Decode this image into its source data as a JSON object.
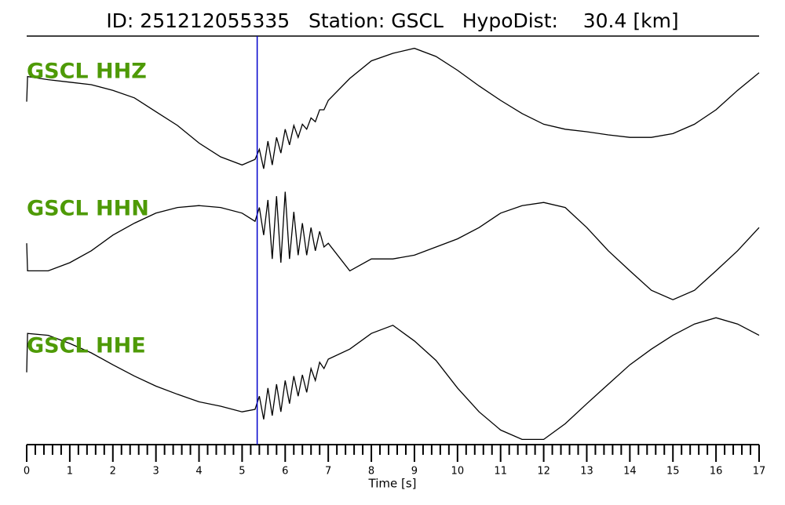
{
  "chart_data": {
    "type": "line",
    "title": "ID: 251212055335   Station: GSCL   HypoDist:    30.4 [km]",
    "xlabel": "Time [s]",
    "xlim": [
      0,
      17
    ],
    "ylim": [
      -1,
      1
    ],
    "xticks": [
      0,
      1,
      2,
      3,
      4,
      5,
      6,
      7,
      8,
      9,
      10,
      11,
      12,
      13,
      14,
      15,
      16,
      17
    ],
    "xminorticks": [
      0.2,
      0.4,
      0.6,
      0.8,
      1.2,
      1.4,
      1.6,
      1.8,
      2.2,
      2.4,
      2.6,
      2.8,
      3.2,
      3.4,
      3.6,
      3.8,
      4.2,
      4.4,
      4.6,
      4.8,
      5.2,
      5.4,
      5.6,
      5.8,
      6.2,
      6.4,
      6.6,
      6.8,
      7.2,
      7.4,
      7.6,
      7.8,
      8.2,
      8.4,
      8.6,
      8.8,
      9.2,
      9.4,
      9.6,
      9.8,
      10.2,
      10.4,
      10.6,
      10.8,
      11.2,
      11.4,
      11.6,
      11.8,
      12.2,
      12.4,
      12.6,
      12.8,
      13.2,
      13.4,
      13.6,
      13.8,
      14.2,
      14.4,
      14.6,
      14.8,
      15.2,
      15.4,
      15.6,
      15.8,
      16.2,
      16.4,
      16.6,
      16.8
    ],
    "pick": {
      "x": 5.35,
      "color": "#0000cc"
    },
    "x": [
      0,
      0.02,
      0.5,
      1,
      1.5,
      2,
      2.5,
      3,
      3.5,
      4,
      4.5,
      5,
      5.3,
      5.4,
      5.5,
      5.6,
      5.7,
      5.8,
      5.9,
      6.0,
      6.1,
      6.2,
      6.3,
      6.4,
      6.5,
      6.6,
      6.7,
      6.8,
      6.9,
      7.0,
      7.5,
      8,
      8.5,
      9,
      9.5,
      10,
      10.5,
      11,
      11.5,
      12,
      12.5,
      13,
      13.5,
      14,
      14.5,
      15,
      15.5,
      16,
      16.5,
      17
    ],
    "label_color": "#4e9a06",
    "series": [
      {
        "name": "GSCL HHZ",
        "color": "#000000",
        "values": [
          0.13,
          0.53,
          0.48,
          0.44,
          0.4,
          0.31,
          0.19,
          -0.03,
          -0.25,
          -0.53,
          -0.75,
          -0.88,
          -0.79,
          -0.63,
          -0.94,
          -0.5,
          -0.88,
          -0.44,
          -0.69,
          -0.31,
          -0.56,
          -0.25,
          -0.44,
          -0.23,
          -0.31,
          -0.13,
          -0.19,
          0,
          0,
          0.15,
          0.5,
          0.78,
          0.9,
          0.98,
          0.85,
          0.63,
          0.38,
          0.15,
          -0.06,
          -0.23,
          -0.31,
          -0.35,
          -0.4,
          -0.44,
          -0.44,
          -0.38,
          -0.23,
          0,
          0.31,
          0.59
        ]
      },
      {
        "name": "GSCL HHN",
        "color": "#000000",
        "values": [
          0.06,
          -0.38,
          -0.38,
          -0.25,
          -0.06,
          0.19,
          0.38,
          0.54,
          0.63,
          0.66,
          0.63,
          0.54,
          0.41,
          0.63,
          0.19,
          0.75,
          -0.19,
          0.81,
          -0.25,
          0.88,
          -0.19,
          0.56,
          -0.13,
          0.38,
          -0.13,
          0.31,
          -0.06,
          0.25,
          0,
          0.06,
          -0.38,
          -0.19,
          -0.19,
          -0.13,
          0,
          0.13,
          0.31,
          0.54,
          0.66,
          0.71,
          0.63,
          0.31,
          -0.06,
          -0.38,
          -0.69,
          -0.84,
          -0.69,
          -0.38,
          -0.06,
          0.31
        ]
      },
      {
        "name": "GSCL HHE",
        "color": "#000000",
        "values": [
          0.19,
          0.81,
          0.78,
          0.65,
          0.5,
          0.31,
          0.13,
          -0.03,
          -0.16,
          -0.28,
          -0.35,
          -0.44,
          -0.4,
          -0.19,
          -0.56,
          -0.06,
          -0.5,
          0,
          -0.44,
          0.06,
          -0.31,
          0.13,
          -0.19,
          0.15,
          -0.13,
          0.25,
          0.06,
          0.35,
          0.25,
          0.4,
          0.56,
          0.81,
          0.94,
          0.69,
          0.38,
          -0.06,
          -0.44,
          -0.73,
          -0.88,
          -0.88,
          -0.63,
          -0.31,
          0,
          0.31,
          0.56,
          0.78,
          0.96,
          1.06,
          0.96,
          0.78
        ]
      }
    ]
  }
}
